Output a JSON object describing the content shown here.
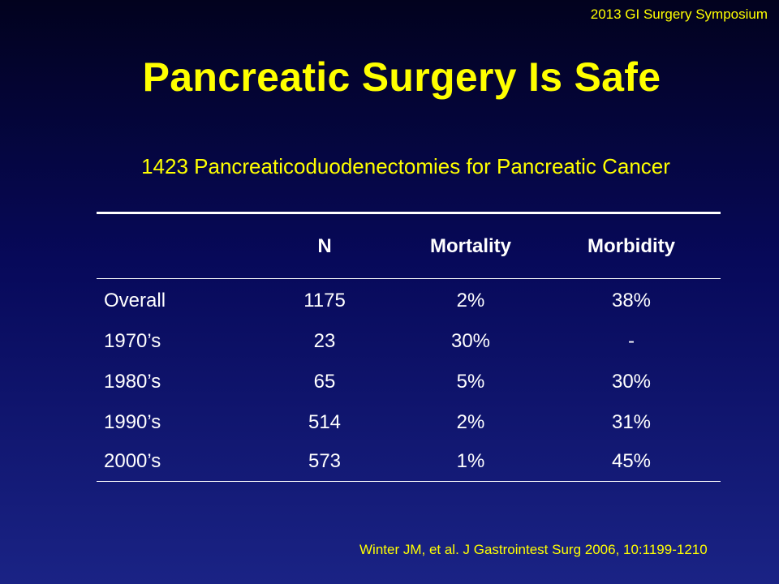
{
  "header": {
    "symposium": "2013 GI Surgery Symposium",
    "title": "Pancreatic Surgery Is Safe",
    "subtitle": "1423 Pancreaticoduodenectomies  for Pancreatic  Cancer"
  },
  "table": {
    "columns": [
      "",
      "N",
      "Mortality",
      "Morbidity"
    ],
    "rows": [
      {
        "label": "Overall",
        "n": "1175",
        "mortality": "2%",
        "morbidity": "38%"
      },
      {
        "label": "1970’s",
        "n": "23",
        "mortality": "30%",
        "morbidity": "-"
      },
      {
        "label": "1980’s",
        "n": "65",
        "mortality": "5%",
        "morbidity": "30%"
      },
      {
        "label": "1990’s",
        "n": "514",
        "mortality": "2%",
        "morbidity": "31%"
      },
      {
        "label": "2000’s",
        "n": "573",
        "mortality": "1%",
        "morbidity": "45%"
      }
    ]
  },
  "footer": {
    "citation": "Winter JM, et al.  J Gastrointest Surg 2006, 10:1199-1210"
  },
  "colors": {
    "accent": "#ffff00",
    "text": "#ffffff",
    "background_top": "#02021e",
    "background_bottom": "#1a2385"
  }
}
